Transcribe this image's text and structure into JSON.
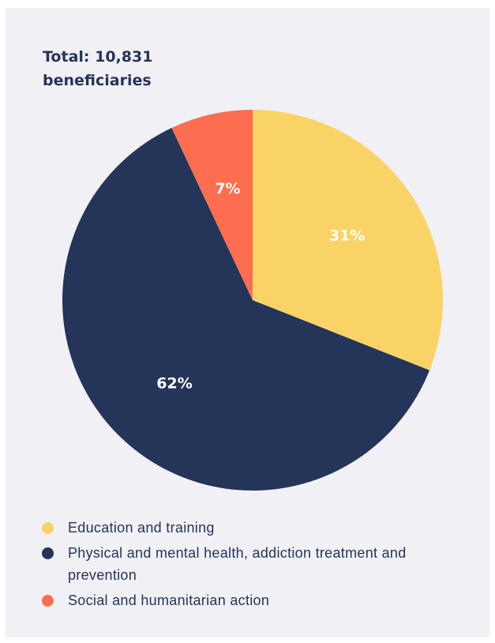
{
  "title_lines": [
    "Total: 10,831",
    "beneficiaries"
  ],
  "colors": {
    "background": "#f1f0f5",
    "text": "#243559"
  },
  "chart_data": {
    "type": "pie",
    "title": "Total: 10,831 beneficiaries",
    "start_angle_deg": 0,
    "direction": "clockwise",
    "slices": [
      {
        "label": "Education and training",
        "value": 31,
        "display": "31%",
        "color": "#f9d366"
      },
      {
        "label": "Physical and mental health, addiction treatment and prevention",
        "value": 62,
        "display": "62%",
        "color": "#243559"
      },
      {
        "label": "Social and humanitarian action",
        "value": 7,
        "display": "7%",
        "color": "#fd6e50"
      }
    ],
    "legend_position": "bottom"
  }
}
